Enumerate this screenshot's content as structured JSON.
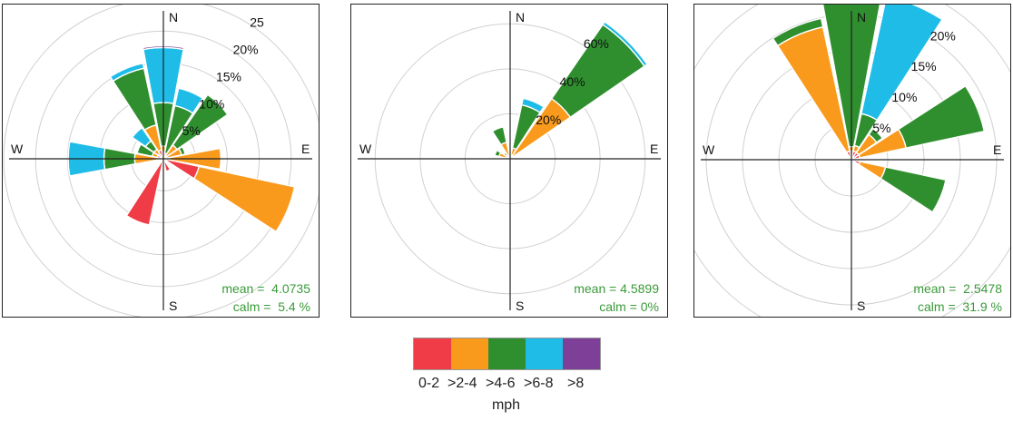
{
  "chart_data": [
    {
      "type": "polar-bar",
      "rings_percent": [
        5,
        10,
        15,
        20,
        25
      ],
      "ring_labels": [
        {
          "value": 5,
          "text": "5%"
        },
        {
          "value": 10,
          "text": "10%"
        },
        {
          "value": 15,
          "text": "15%"
        },
        {
          "value": 20,
          "text": "20%"
        },
        {
          "value": 25,
          "text": "25"
        }
      ],
      "rmax": 25,
      "directions": [
        "N",
        "NNE",
        "NE",
        "ENE",
        "E",
        "ESE",
        "SE",
        "SSE",
        "S",
        "SSW",
        "SW",
        "WSW",
        "W",
        "WNW",
        "NW",
        "NNW"
      ],
      "sectors": [
        {
          "dir": 0,
          "segments": [
            1.0,
            1.0,
            6.8,
            8.6,
            0.3
          ]
        },
        {
          "dir": 22.5,
          "segments": [
            0.3,
            0.6,
            7.6,
            2.8
          ]
        },
        {
          "dir": 45,
          "segments": [
            0.6,
            2.0,
            9.6
          ]
        },
        {
          "dir": 67.5,
          "segments": [
            0.3,
            2.6,
            0.6
          ]
        },
        {
          "dir": 90,
          "segments": [
            1.0,
            8.0
          ]
        },
        {
          "dir": 112.5,
          "segments": [
            5.7,
            15.3
          ]
        },
        {
          "dir": 157.5,
          "segments": [
            2.0
          ]
        },
        {
          "dir": 202.5,
          "segments": [
            10.6
          ]
        },
        {
          "dir": 247.5,
          "segments": [
            0.6
          ]
        },
        {
          "dir": 270,
          "segments": [
            1.0,
            3.5,
            4.8,
            5.6
          ]
        },
        {
          "dir": 292.5,
          "segments": [
            1.0,
            0.8,
            2.4
          ]
        },
        {
          "dir": 315,
          "segments": [
            1.0,
            0.8,
            1.6,
            2.5
          ]
        },
        {
          "dir": 337.5,
          "segments": [
            1.4,
            4.0,
            9.1,
            0.8
          ]
        }
      ],
      "mean_text": "mean =  4.0735",
      "calm_text": "calm =  5.4 %"
    },
    {
      "type": "polar-bar",
      "rings_percent": [
        20,
        40,
        60
      ],
      "ring_labels": [
        {
          "value": 20,
          "text": "20%"
        },
        {
          "value": 40,
          "text": "40%"
        },
        {
          "value": 60,
          "text": "60%"
        }
      ],
      "rmax": 71,
      "directions": [
        "N",
        "NNE",
        "NE",
        "ENE",
        "E",
        "ESE",
        "SE",
        "SSE",
        "S",
        "SSW",
        "SW",
        "WSW",
        "W",
        "WNW",
        "NW",
        "NNW"
      ],
      "sectors": [
        {
          "dir": 22.5,
          "segments": [
            1.0,
            4.0,
            19.5,
            3.0
          ]
        },
        {
          "dir": 45,
          "segments": [
            1.5,
            31.0,
            40.0,
            1.5
          ]
        },
        {
          "dir": 67.5,
          "segments": [
            1.5
          ]
        },
        {
          "dir": 315,
          "segments": [
            1.5,
            2.0
          ]
        },
        {
          "dir": 337.5,
          "segments": [
            1.5,
            6.0,
            7.0
          ]
        },
        {
          "dir": 292.5,
          "segments": [
            1.5,
            3.5,
            2.0
          ]
        }
      ],
      "mean_text": "mean = 4.5899",
      "calm_text": "calm = 0%"
    },
    {
      "type": "polar-bar",
      "rings_percent": [
        5,
        10,
        15,
        20,
        25
      ],
      "ring_labels": [
        {
          "value": 5,
          "text": "5%"
        },
        {
          "value": 10,
          "text": "10%"
        },
        {
          "value": 15,
          "text": "15%"
        },
        {
          "value": 20,
          "text": "20%"
        }
      ],
      "rmax": 23.5,
      "directions": [
        "N",
        "NNE",
        "NE",
        "ENE",
        "E",
        "ESE",
        "SE",
        "SSE",
        "S",
        "SSW",
        "SW",
        "WSW",
        "W",
        "WNW",
        "NW",
        "NNW"
      ],
      "sectors": [
        {
          "dir": 0,
          "segments": [
            1.2,
            0.6,
            22.0
          ]
        },
        {
          "dir": 22.5,
          "segments": [
            1.2,
            0.8,
            4.5,
            16.5
          ]
        },
        {
          "dir": 45,
          "segments": [
            1.2,
            3.0,
            1.0
          ]
        },
        {
          "dir": 67.5,
          "segments": [
            1.2,
            6.5,
            11.0
          ]
        },
        {
          "dir": 112.5,
          "segments": [
            1.2,
            3.6,
            8.5
          ]
        },
        {
          "dir": 337.5,
          "segments": [
            1.2,
            17.5,
            1.2
          ]
        }
      ],
      "mean_text": "mean =  2.5478",
      "calm_text": "calm =  31.9 %"
    }
  ],
  "compass": {
    "n": "N",
    "e": "E",
    "s": "S",
    "w": "W"
  },
  "legend": {
    "bins": [
      "0-2",
      ">2-4",
      ">4-6",
      ">6-8",
      ">8"
    ],
    "colors": [
      "#f03c46",
      "#f99a1c",
      "#2f8f2f",
      "#1fbce8",
      "#7d3f98"
    ],
    "unit": "mph"
  }
}
